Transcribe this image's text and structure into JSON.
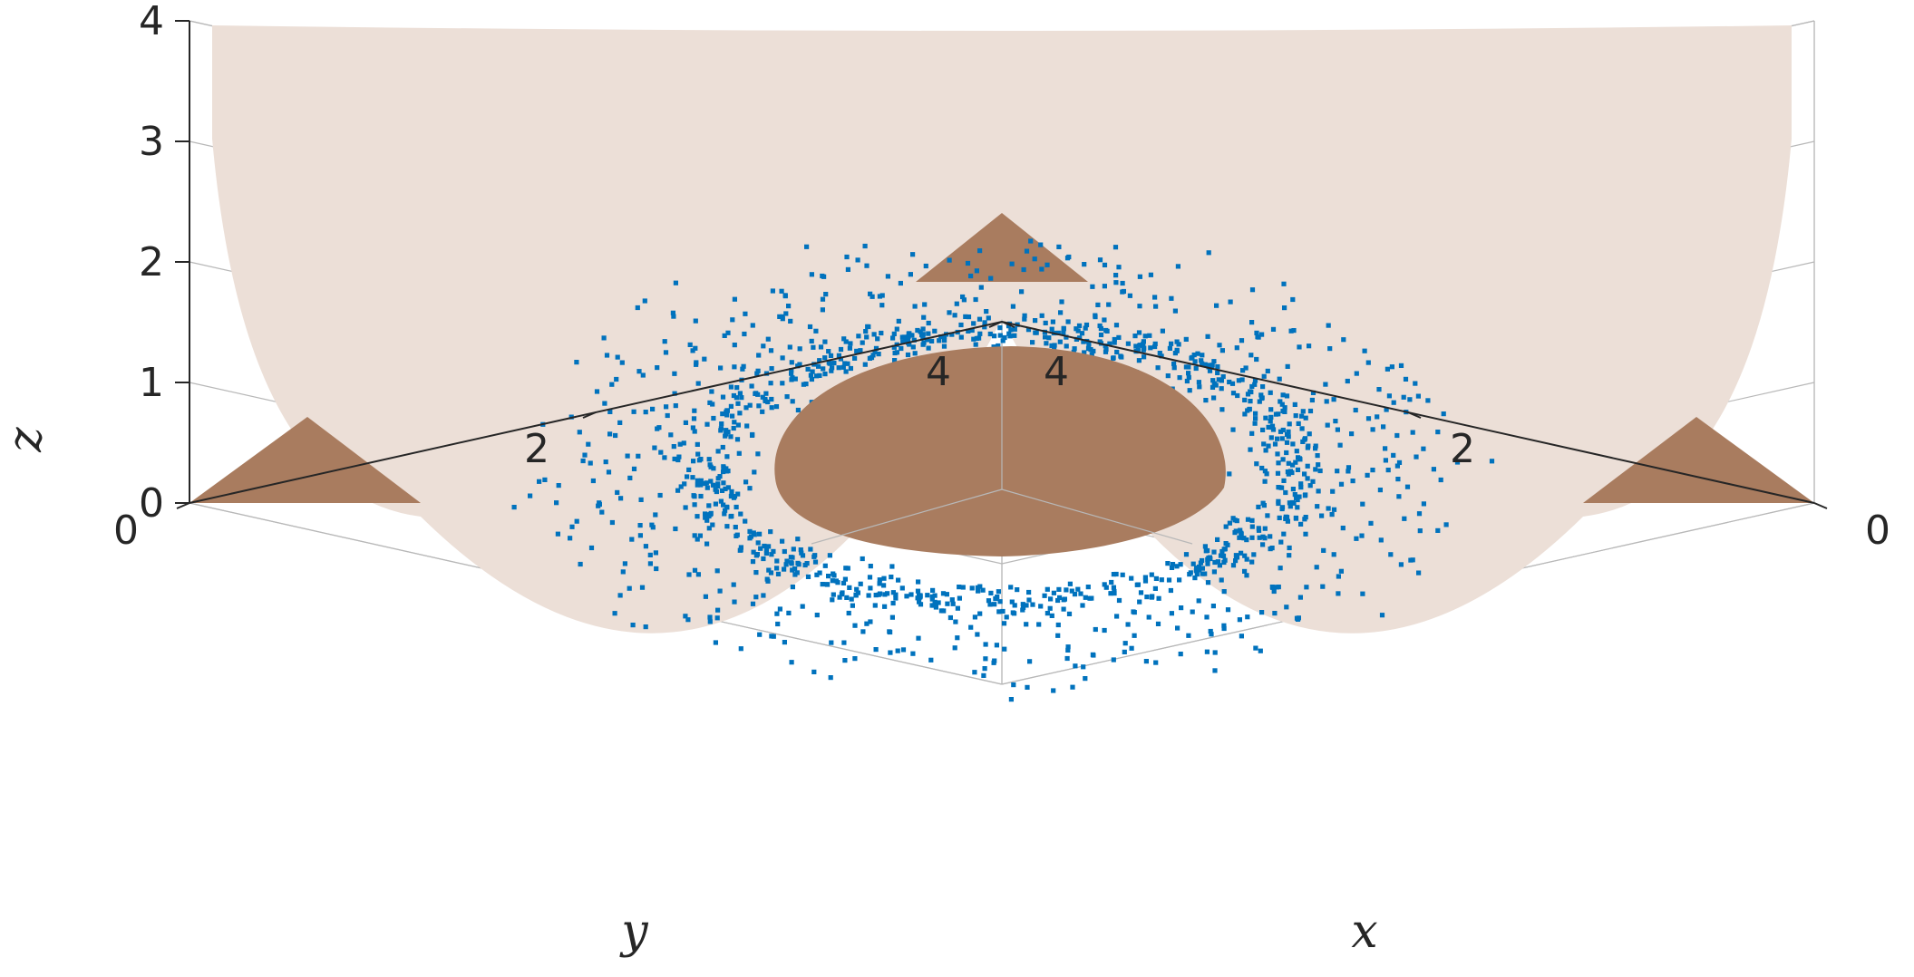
{
  "chart_data": {
    "type": "scatter",
    "title": "",
    "xlabel": "x",
    "ylabel": "y",
    "zlabel": "z",
    "xlim": [
      0,
      4
    ],
    "ylim": [
      0,
      4
    ],
    "zlim": [
      0,
      4
    ],
    "x_ticks": [
      "0",
      "2",
      "4"
    ],
    "y_ticks": [
      "0",
      "2",
      "4"
    ],
    "z_ticks": [
      "0",
      "1",
      "2",
      "3",
      "4"
    ],
    "grid": true,
    "legend": "none",
    "scatter_color": "#0072BD",
    "outer_surface_color": "#ecdfd7",
    "inner_surface_color": "#a97c5f",
    "scatter_description_points": {
      "inner_ring": {
        "center": [
          2,
          2,
          2
        ],
        "radius": 1.55,
        "count": 900
      },
      "outer_ring": {
        "center": [
          2,
          2,
          2
        ],
        "radius": 2.2,
        "count": 500
      }
    }
  }
}
